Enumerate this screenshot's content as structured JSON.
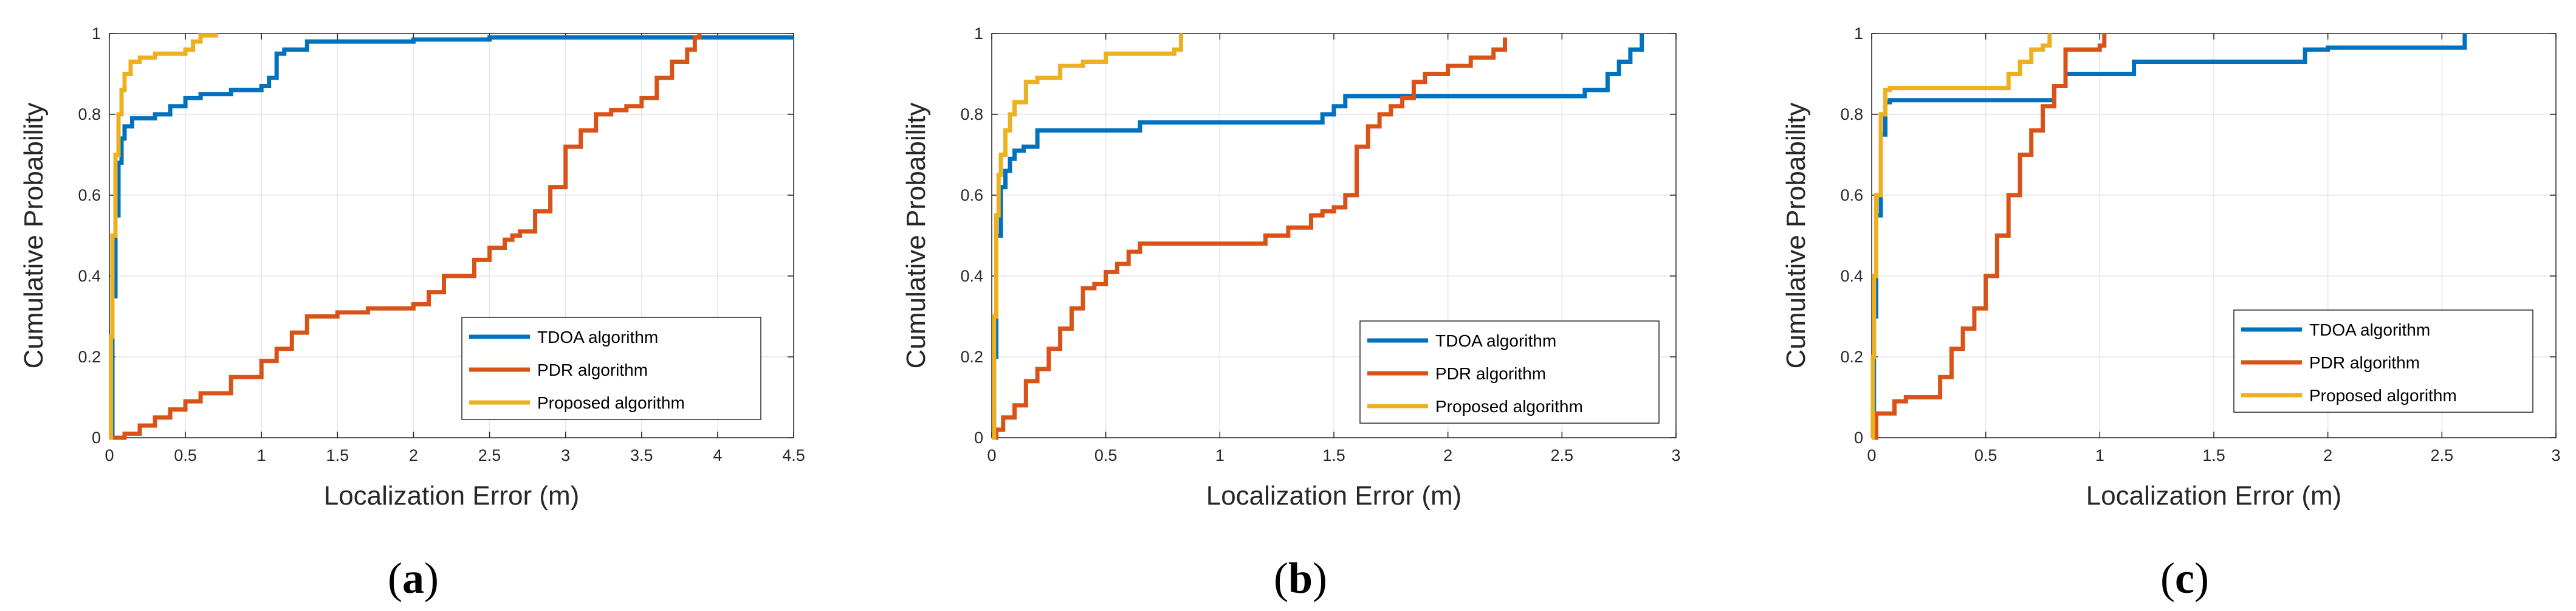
{
  "chart_data": [
    {
      "type": "line",
      "panel_label": "a",
      "xlabel": "Localization Error (m)",
      "ylabel": "Cumulative Probability",
      "xlim": [
        0,
        4.5
      ],
      "ylim": [
        0,
        1
      ],
      "xticks": [
        0,
        0.5,
        1,
        1.5,
        2,
        2.5,
        3,
        3.5,
        4,
        4.5
      ],
      "xtick_labels": [
        "0",
        "0.5",
        "1",
        "1.5",
        "2",
        "2.5",
        "3",
        "3.5",
        "4",
        "4.5"
      ],
      "yticks": [
        0,
        0.2,
        0.4,
        0.6,
        0.8,
        1
      ],
      "ytick_labels": [
        "0",
        "0.2",
        "0.4",
        "0.6",
        "0.8",
        "1"
      ],
      "grid": true,
      "legend_position": "lower-right",
      "series": [
        {
          "name": "TDOA algorithm",
          "color": "#0072BD",
          "x": [
            0,
            0.02,
            0.04,
            0.06,
            0.08,
            0.1,
            0.15,
            0.2,
            0.3,
            0.4,
            0.5,
            0.6,
            0.8,
            1.0,
            1.05,
            1.1,
            1.15,
            1.3,
            1.5,
            2.0,
            2.5,
            3.0,
            3.5,
            4.5
          ],
          "y": [
            0,
            0.35,
            0.55,
            0.68,
            0.74,
            0.77,
            0.79,
            0.79,
            0.8,
            0.82,
            0.84,
            0.85,
            0.86,
            0.87,
            0.89,
            0.95,
            0.96,
            0.98,
            0.98,
            0.985,
            0.99,
            0.99,
            0.99,
            0.99
          ]
        },
        {
          "name": "PDR algorithm",
          "color": "#D95319",
          "x": [
            0,
            0.05,
            0.1,
            0.2,
            0.3,
            0.4,
            0.5,
            0.6,
            0.8,
            1.0,
            1.1,
            1.2,
            1.3,
            1.5,
            1.7,
            2.0,
            2.1,
            2.2,
            2.4,
            2.5,
            2.6,
            2.65,
            2.7,
            2.8,
            2.9,
            3.0,
            3.1,
            3.2,
            3.3,
            3.4,
            3.5,
            3.6,
            3.7,
            3.8,
            3.85,
            3.88
          ],
          "y": [
            0,
            0.0,
            0.01,
            0.03,
            0.05,
            0.07,
            0.09,
            0.11,
            0.15,
            0.19,
            0.22,
            0.26,
            0.3,
            0.31,
            0.32,
            0.33,
            0.36,
            0.4,
            0.44,
            0.47,
            0.49,
            0.5,
            0.51,
            0.56,
            0.62,
            0.72,
            0.76,
            0.8,
            0.81,
            0.82,
            0.84,
            0.89,
            0.93,
            0.96,
            0.99,
            1.0
          ]
        },
        {
          "name": "Proposed algorithm",
          "color": "#EDB120",
          "x": [
            0,
            0.01,
            0.02,
            0.04,
            0.06,
            0.08,
            0.1,
            0.14,
            0.2,
            0.3,
            0.4,
            0.5,
            0.55,
            0.6,
            0.7
          ],
          "y": [
            0,
            0.25,
            0.5,
            0.7,
            0.8,
            0.86,
            0.9,
            0.93,
            0.94,
            0.95,
            0.95,
            0.96,
            0.98,
            0.995,
            1.0
          ]
        }
      ]
    },
    {
      "type": "line",
      "panel_label": "b",
      "xlabel": "Localization Error (m)",
      "ylabel": "Cumulative Probability",
      "xlim": [
        0,
        3
      ],
      "ylim": [
        0,
        1
      ],
      "xticks": [
        0,
        0.5,
        1,
        1.5,
        2,
        2.5,
        3
      ],
      "xtick_labels": [
        "0",
        "0.5",
        "1",
        "1.5",
        "2",
        "2.5",
        "3"
      ],
      "yticks": [
        0,
        0.2,
        0.4,
        0.6,
        0.8,
        1
      ],
      "ytick_labels": [
        "0",
        "0.2",
        "0.4",
        "0.6",
        "0.8",
        "1"
      ],
      "grid": true,
      "legend_position": "lower-right",
      "series": [
        {
          "name": "TDOA algorithm",
          "color": "#0072BD",
          "x": [
            0,
            0.01,
            0.02,
            0.04,
            0.06,
            0.08,
            0.1,
            0.14,
            0.2,
            0.4,
            0.65,
            1.0,
            1.4,
            1.45,
            1.5,
            1.55,
            2.0,
            2.5,
            2.6,
            2.7,
            2.75,
            2.8,
            2.85
          ],
          "y": [
            0,
            0.2,
            0.5,
            0.62,
            0.66,
            0.69,
            0.71,
            0.72,
            0.76,
            0.76,
            0.78,
            0.78,
            0.78,
            0.8,
            0.82,
            0.845,
            0.845,
            0.845,
            0.86,
            0.9,
            0.93,
            0.96,
            1.0
          ]
        },
        {
          "name": "PDR algorithm",
          "color": "#D95319",
          "x": [
            0,
            0.02,
            0.05,
            0.1,
            0.15,
            0.2,
            0.25,
            0.3,
            0.35,
            0.4,
            0.45,
            0.5,
            0.55,
            0.6,
            0.65,
            0.7,
            1.0,
            1.2,
            1.3,
            1.4,
            1.45,
            1.5,
            1.55,
            1.6,
            1.65,
            1.7,
            1.75,
            1.8,
            1.85,
            1.9,
            2.0,
            2.1,
            2.2,
            2.25
          ],
          "y": [
            0,
            0.02,
            0.05,
            0.08,
            0.14,
            0.17,
            0.22,
            0.27,
            0.32,
            0.37,
            0.38,
            0.41,
            0.43,
            0.46,
            0.48,
            0.48,
            0.48,
            0.5,
            0.52,
            0.55,
            0.56,
            0.57,
            0.6,
            0.72,
            0.77,
            0.8,
            0.82,
            0.84,
            0.88,
            0.9,
            0.92,
            0.94,
            0.96,
            0.99
          ]
        },
        {
          "name": "Proposed algorithm",
          "color": "#EDB120",
          "x": [
            0,
            0.01,
            0.02,
            0.03,
            0.04,
            0.06,
            0.08,
            0.1,
            0.15,
            0.2,
            0.3,
            0.4,
            0.5,
            0.6,
            0.7,
            0.8,
            0.83
          ],
          "y": [
            0,
            0.3,
            0.55,
            0.65,
            0.7,
            0.76,
            0.8,
            0.83,
            0.88,
            0.89,
            0.92,
            0.93,
            0.95,
            0.95,
            0.95,
            0.96,
            1.0
          ]
        }
      ]
    },
    {
      "type": "line",
      "panel_label": "c",
      "xlabel": "Localization Error (m)",
      "ylabel": "Cumulative Probability",
      "xlim": [
        0,
        3
      ],
      "ylim": [
        0,
        1
      ],
      "xticks": [
        0,
        0.5,
        1,
        1.5,
        2,
        2.5,
        3
      ],
      "xtick_labels": [
        "0",
        "0.5",
        "1",
        "1.5",
        "2",
        "2.5",
        "3"
      ],
      "yticks": [
        0,
        0.2,
        0.4,
        0.6,
        0.8,
        1
      ],
      "ytick_labels": [
        "0",
        "0.2",
        "0.4",
        "0.6",
        "0.8",
        "1"
      ],
      "grid": true,
      "legend_position": "lower-right",
      "series": [
        {
          "name": "TDOA algorithm",
          "color": "#0072BD",
          "x": [
            0,
            0.005,
            0.01,
            0.02,
            0.04,
            0.06,
            0.08,
            0.5,
            0.7,
            0.8,
            0.85,
            1.0,
            1.15,
            1.5,
            1.9,
            2.0,
            2.5,
            2.6
          ],
          "y": [
            0,
            0.06,
            0.3,
            0.55,
            0.75,
            0.83,
            0.835,
            0.835,
            0.835,
            0.87,
            0.9,
            0.9,
            0.93,
            0.93,
            0.96,
            0.965,
            0.965,
            1.0
          ]
        },
        {
          "name": "PDR algorithm",
          "color": "#D95319",
          "x": [
            0,
            0.02,
            0.1,
            0.15,
            0.3,
            0.35,
            0.4,
            0.45,
            0.5,
            0.55,
            0.6,
            0.65,
            0.7,
            0.75,
            0.8,
            0.85,
            1.0,
            1.02
          ],
          "y": [
            0,
            0.06,
            0.09,
            0.1,
            0.15,
            0.22,
            0.27,
            0.32,
            0.4,
            0.5,
            0.6,
            0.7,
            0.76,
            0.82,
            0.87,
            0.96,
            0.97,
            1.0
          ]
        },
        {
          "name": "Proposed algorithm",
          "color": "#EDB120",
          "x": [
            0,
            0.005,
            0.01,
            0.02,
            0.04,
            0.06,
            0.08,
            0.3,
            0.55,
            0.6,
            0.65,
            0.7,
            0.75,
            0.78
          ],
          "y": [
            0,
            0.2,
            0.4,
            0.6,
            0.8,
            0.86,
            0.865,
            0.865,
            0.865,
            0.9,
            0.93,
            0.96,
            0.97,
            1.0
          ]
        }
      ]
    }
  ]
}
